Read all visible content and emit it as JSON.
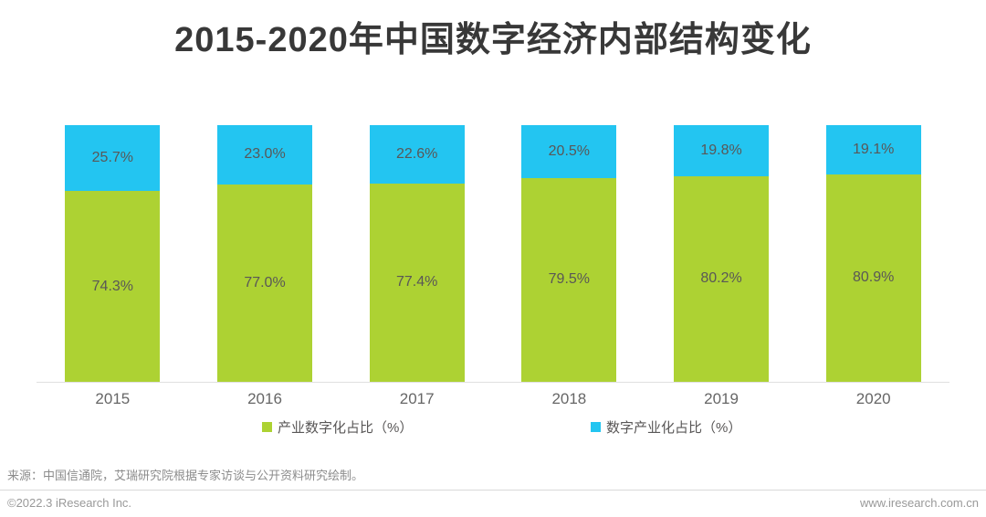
{
  "title": "2015-2020年中国数字经济内部结构变化",
  "chart_data": {
    "type": "bar",
    "stacked": true,
    "unit": "%",
    "title": "2015-2020年中国数字经济内部结构变化",
    "categories": [
      "2015",
      "2016",
      "2017",
      "2018",
      "2019",
      "2020"
    ],
    "series": [
      {
        "name": "产业数字化占比（%）",
        "color": "#ADD233",
        "values": [
          74.3,
          77.0,
          77.4,
          79.5,
          80.2,
          80.9
        ],
        "labels": [
          "74.3%",
          "77.0%",
          "77.4%",
          "79.5%",
          "80.2%",
          "80.9%"
        ]
      },
      {
        "name": "数字产业化占比（%）",
        "color": "#23C5F1",
        "values": [
          25.7,
          23.0,
          22.6,
          20.5,
          19.8,
          19.1
        ],
        "labels": [
          "25.7%",
          "23.0%",
          "22.6%",
          "20.5%",
          "19.8%",
          "19.1%"
        ]
      }
    ],
    "stack_order_top_to_bottom": [
      "数字产业化占比（%）",
      "产业数字化占比（%）"
    ],
    "ylim": [
      0,
      100
    ],
    "grid": false,
    "legend_position": "bottom",
    "value_labels": "centered-in-segment"
  },
  "footer": {
    "source": "来源：中国信通院，艾瑞研究院根据专家访谈与公开资料研究绘制。",
    "copyright": "©2022.3 iResearch Inc.",
    "website": "www.iresearch.com.cn"
  }
}
